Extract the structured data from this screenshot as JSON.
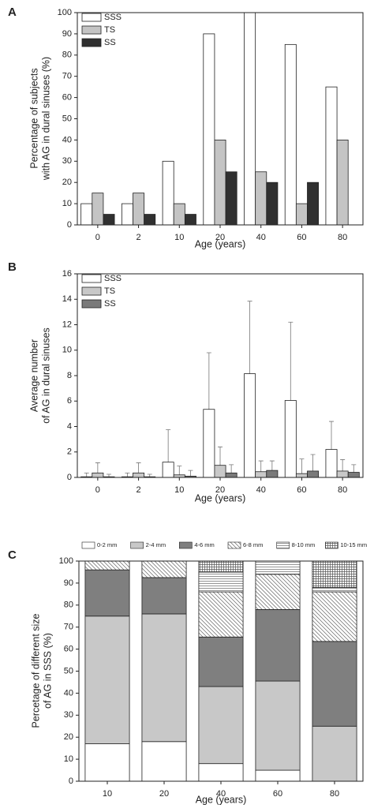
{
  "chart_data": [
    {
      "type": "bar",
      "panel_label": "A",
      "xlabel": "Age (years)",
      "ylabel": [
        "Percentage of subjects",
        "with AG in dural sinuses (%)"
      ],
      "categories": [
        "0",
        "2",
        "10",
        "20",
        "40",
        "60",
        "80"
      ],
      "series": [
        {
          "name": "SSS",
          "color": "#ffffff",
          "values": [
            10,
            10,
            30,
            90,
            100,
            85,
            65
          ]
        },
        {
          "name": "TS",
          "color": "#c4c4c4",
          "values": [
            15,
            15,
            10,
            40,
            25,
            10,
            40
          ]
        },
        {
          "name": "SS",
          "color": "#303030",
          "values": [
            5,
            5,
            5,
            25,
            20,
            20,
            0
          ]
        }
      ],
      "ylim": [
        0,
        100
      ],
      "yticks": [
        0,
        10,
        20,
        30,
        40,
        50,
        60,
        70,
        80,
        90,
        100
      ],
      "legend": "upper left"
    },
    {
      "type": "bar",
      "panel_label": "B",
      "xlabel": "Age (years)",
      "ylabel": [
        "Average number",
        "of AG in dural sinuses"
      ],
      "categories": [
        "0",
        "2",
        "10",
        "20",
        "40",
        "60",
        "80"
      ],
      "series": [
        {
          "name": "SSS",
          "color": "#ffffff",
          "values": [
            0.05,
            0.05,
            1.2,
            5.35,
            8.15,
            6.05,
            2.2
          ],
          "errors": [
            0.3,
            0.3,
            2.55,
            4.45,
            5.7,
            6.15,
            2.2
          ]
        },
        {
          "name": "TS",
          "color": "#c8c8c8",
          "values": [
            0.35,
            0.35,
            0.2,
            0.95,
            0.45,
            0.3,
            0.5
          ],
          "errors": [
            0.8,
            0.8,
            0.7,
            1.45,
            0.85,
            1.15,
            0.9
          ]
        },
        {
          "name": "SS",
          "color": "#7a7a7a",
          "values": [
            0.05,
            0.05,
            0.1,
            0.35,
            0.55,
            0.5,
            0.4
          ],
          "errors": [
            0.2,
            0.2,
            0.45,
            0.65,
            0.75,
            1.3,
            0.6
          ]
        }
      ],
      "ylim": [
        0,
        16
      ],
      "yticks": [
        0,
        2,
        4,
        6,
        8,
        10,
        12,
        14,
        16
      ],
      "legend": "upper left"
    },
    {
      "type": "stacked_bar",
      "panel_label": "C",
      "xlabel": "Age (years)",
      "ylabel": [
        "Percetage of different size",
        "of AG in SSS (%)"
      ],
      "categories": [
        "10",
        "20",
        "40",
        "60",
        "80"
      ],
      "series": [
        {
          "name": "0-2 mm",
          "color": "#ffffff",
          "values": [
            17,
            18,
            8,
            5,
            0
          ]
        },
        {
          "name": "2-4 mm",
          "color": "#c8c8c8",
          "values": [
            58,
            58,
            35,
            40.5,
            25
          ]
        },
        {
          "name": "4-6 mm",
          "color": "#7f7f7f",
          "values": [
            21,
            16.5,
            22.5,
            32.5,
            38.5
          ]
        },
        {
          "name": "6-8 mm",
          "color": "#ffffff",
          "pattern": "diagonal",
          "values": [
            4,
            7.5,
            20.5,
            16,
            22.5
          ]
        },
        {
          "name": "8-10 mm",
          "color": "#ffffff",
          "pattern": "horizontal",
          "values": [
            0,
            0,
            9,
            6,
            2
          ]
        },
        {
          "name": "10-15 mm",
          "color": "#ffffff",
          "pattern": "grid",
          "values": [
            0,
            0,
            5,
            0,
            12
          ]
        }
      ],
      "ylim": [
        0,
        100
      ],
      "yticks": [
        0,
        10,
        20,
        30,
        40,
        50,
        60,
        70,
        80,
        90,
        100
      ],
      "legend": "above"
    }
  ]
}
